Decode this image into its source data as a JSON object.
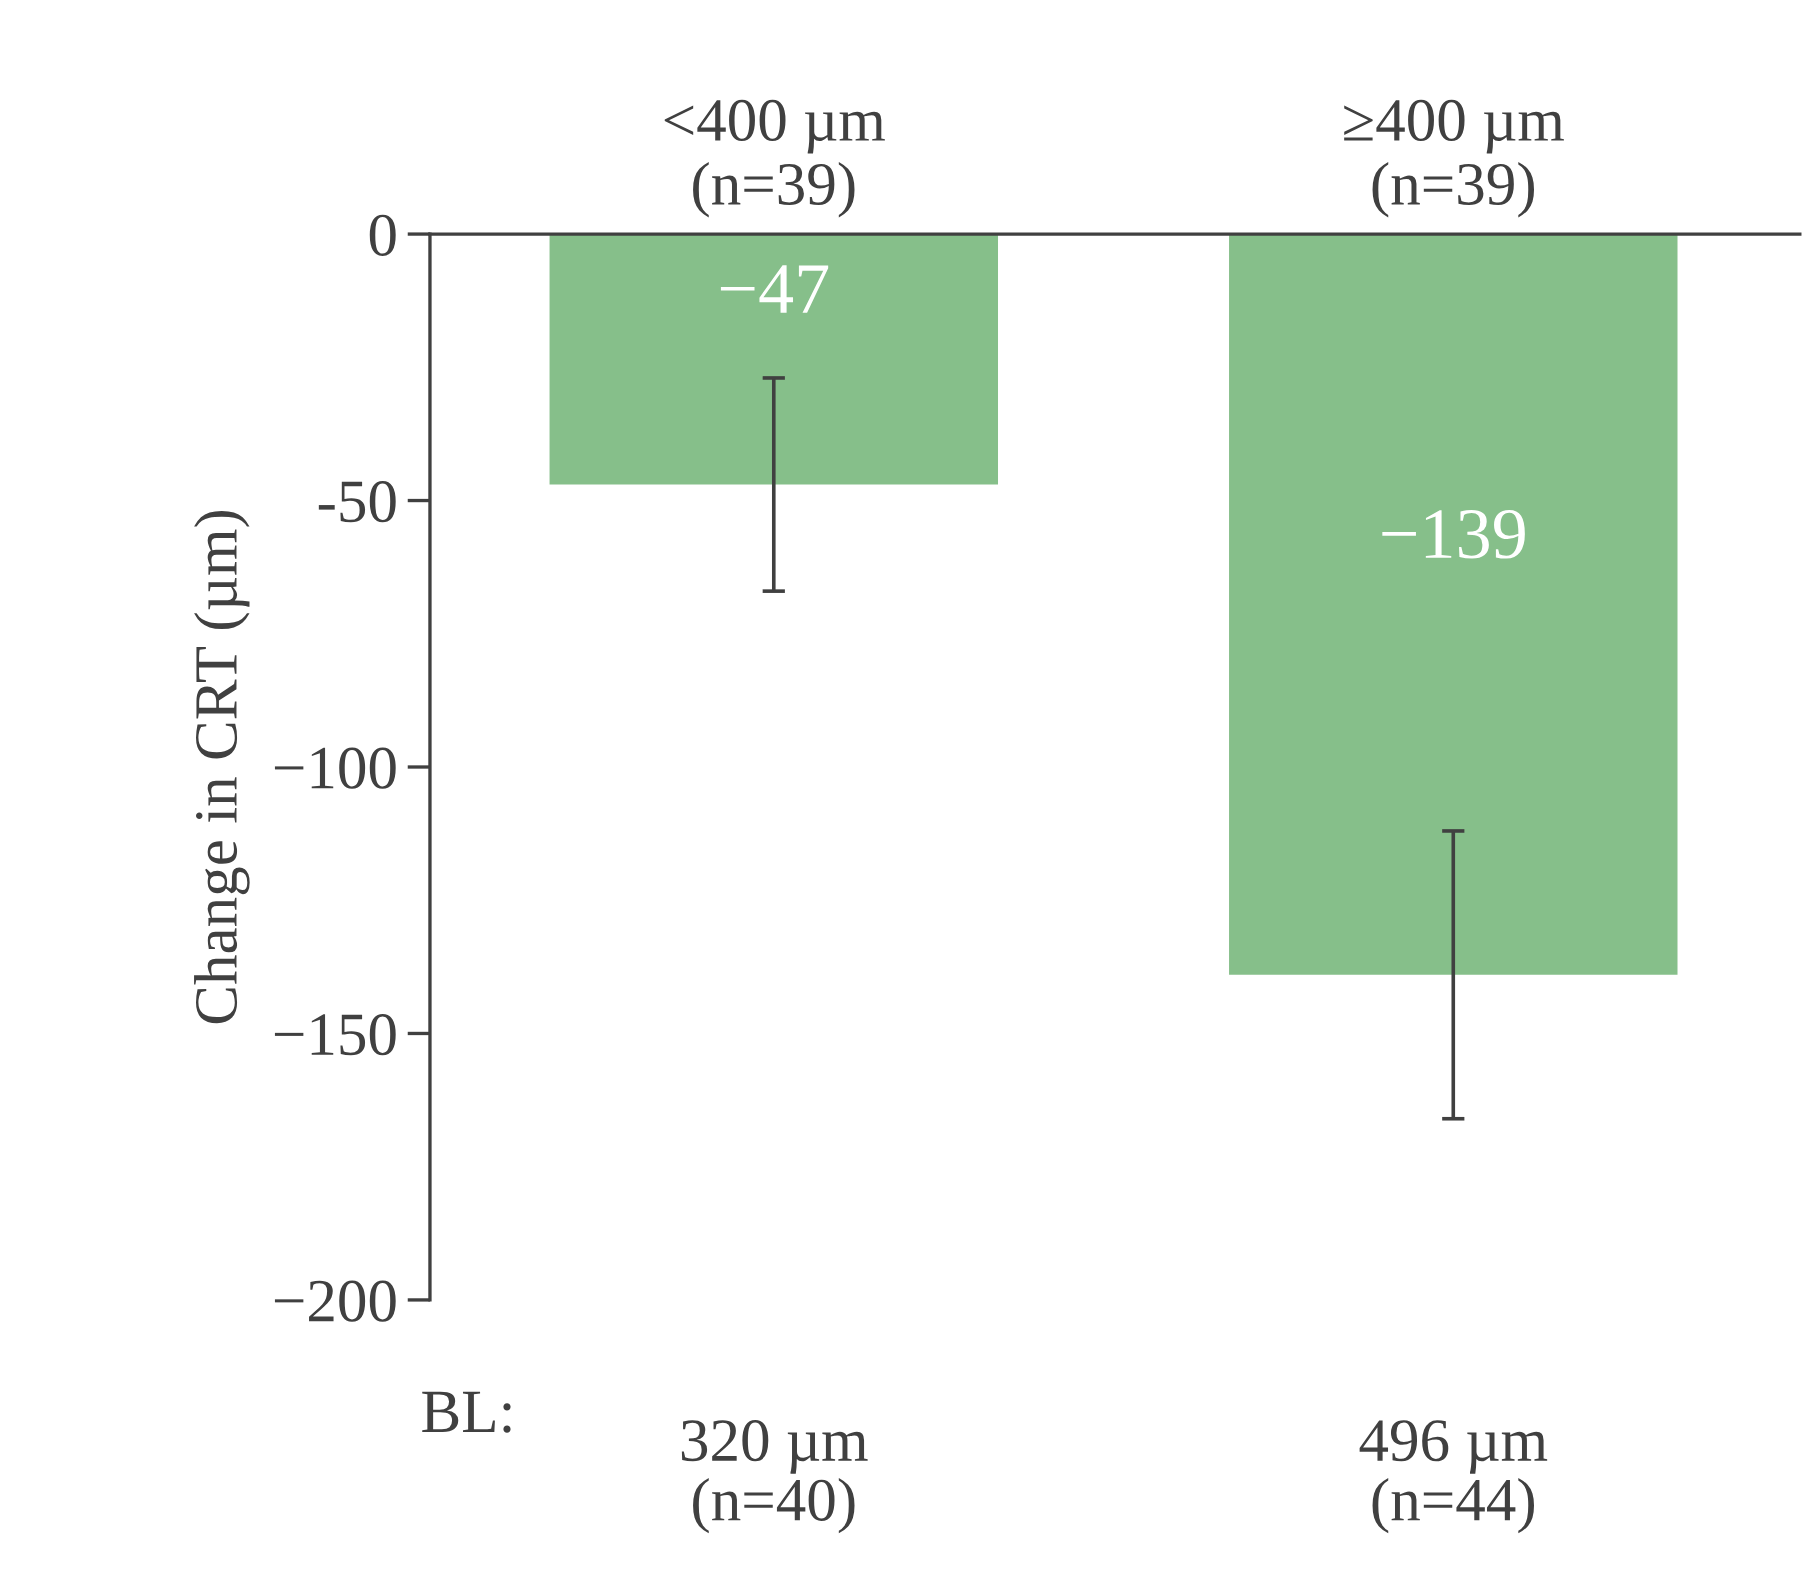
{
  "chart_data": {
    "type": "bar",
    "ylabel": "Change in CRT (µm)",
    "categories": [
      "<400 µm\n(n=39)",
      "≥400 µm\n(n=39)"
    ],
    "values": [
      -47,
      -139
    ],
    "errors": [
      20,
      27
    ],
    "color": "#86bf8a",
    "data_labels": true,
    "ylim": [
      -200,
      0
    ],
    "yticks": [
      {
        "value": -200,
        "label": "−200"
      },
      {
        "value": -150,
        "label": "−150"
      },
      {
        "value": -100,
        "label": "−100"
      },
      {
        "value": -50,
        "label": "-50"
      },
      0
    ],
    "grid": false,
    "annotations": [
      "BL:",
      "320 µm\n(n=40)",
      "496 µm\n(n=44)"
    ]
  }
}
